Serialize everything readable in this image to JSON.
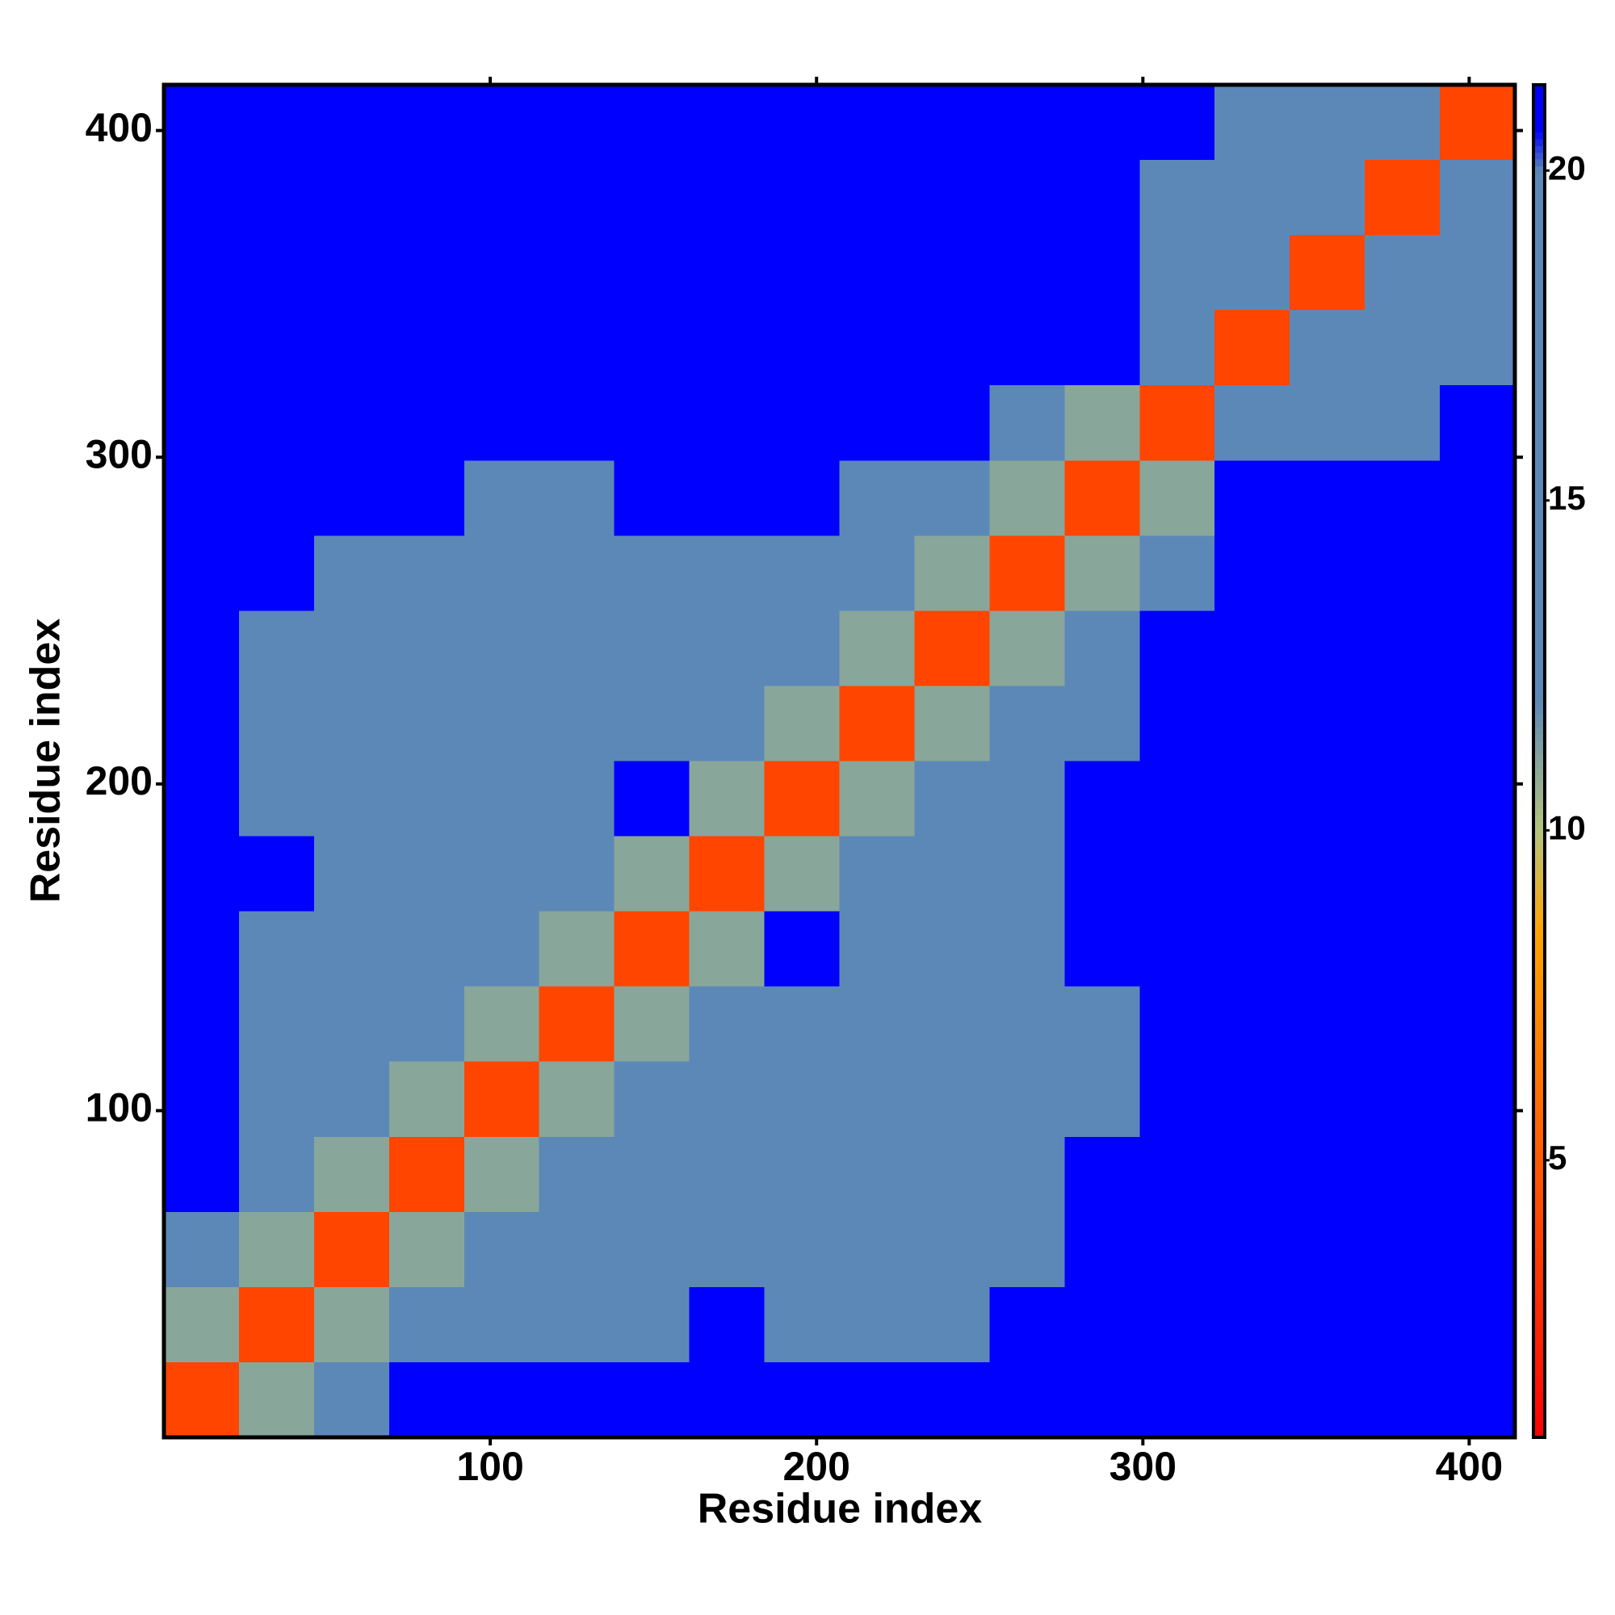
{
  "chart_data": {
    "type": "heatmap",
    "xlabel": "Residue index",
    "ylabel": "Residue index",
    "x": [
      11.5,
      34.5,
      57.5,
      80.5,
      103.5,
      126.5,
      149.5,
      172.5,
      195.5,
      218.5,
      241.5,
      264.5,
      287.5,
      310.5,
      333.5,
      356.5,
      379.5,
      402.5
    ],
    "y": [
      11.5,
      34.5,
      57.5,
      80.5,
      103.5,
      126.5,
      149.5,
      172.5,
      195.5,
      218.5,
      241.5,
      264.5,
      287.5,
      310.5,
      333.5,
      356.5,
      379.5,
      402.5
    ],
    "values": [
      [
        4,
        11,
        15,
        21,
        21,
        21,
        21,
        21,
        21,
        21,
        21,
        21,
        21,
        21,
        21,
        21,
        21,
        21
      ],
      [
        11,
        4,
        11,
        15,
        15,
        15,
        15,
        21,
        15,
        15,
        15,
        21,
        21,
        21,
        21,
        21,
        21,
        21
      ],
      [
        15,
        11,
        4,
        11,
        12,
        15,
        15,
        15,
        15,
        15,
        15,
        15,
        21,
        21,
        21,
        21,
        21,
        21
      ],
      [
        21,
        15,
        11,
        4,
        11,
        12,
        15,
        15,
        15,
        15,
        15,
        15,
        21,
        21,
        21,
        21,
        21,
        21
      ],
      [
        21,
        15,
        12,
        11,
        4,
        11,
        12,
        15,
        15,
        15,
        15,
        15,
        15,
        21,
        21,
        21,
        21,
        21
      ],
      [
        21,
        15,
        15,
        12,
        11,
        4,
        11,
        15,
        15,
        15,
        12,
        15,
        15,
        21,
        21,
        21,
        21,
        21
      ],
      [
        21,
        15,
        15,
        15,
        12,
        11,
        4,
        11,
        21,
        12,
        15,
        15,
        21,
        21,
        21,
        21,
        21,
        21
      ],
      [
        21,
        21,
        15,
        15,
        15,
        15,
        11,
        4,
        11,
        12,
        15,
        15,
        21,
        21,
        21,
        21,
        21,
        21
      ],
      [
        21,
        15,
        15,
        15,
        15,
        15,
        21,
        11,
        4,
        11,
        15,
        15,
        21,
        21,
        21,
        21,
        21,
        21
      ],
      [
        21,
        15,
        15,
        15,
        15,
        15,
        12,
        12,
        11,
        4,
        11,
        15,
        15,
        21,
        21,
        21,
        21,
        21
      ],
      [
        21,
        15,
        15,
        15,
        15,
        12,
        15,
        15,
        15,
        11,
        4,
        11,
        12,
        21,
        21,
        21,
        21,
        21
      ],
      [
        21,
        21,
        15,
        15,
        15,
        15,
        15,
        15,
        15,
        15,
        11,
        4,
        11,
        14,
        21,
        21,
        21,
        21
      ],
      [
        21,
        21,
        21,
        21,
        15,
        15,
        21,
        21,
        21,
        15,
        12,
        11,
        4,
        11,
        21,
        21,
        21,
        21
      ],
      [
        21,
        21,
        21,
        21,
        21,
        21,
        21,
        21,
        21,
        21,
        21,
        14,
        11,
        4,
        13,
        15,
        15,
        21
      ],
      [
        21,
        21,
        21,
        21,
        21,
        21,
        21,
        21,
        21,
        21,
        21,
        21,
        21,
        13,
        4,
        13,
        15,
        15
      ],
      [
        21,
        21,
        21,
        21,
        21,
        21,
        21,
        21,
        21,
        21,
        21,
        21,
        21,
        15,
        13,
        4,
        13,
        15
      ],
      [
        21,
        21,
        21,
        21,
        21,
        21,
        21,
        21,
        21,
        21,
        21,
        21,
        21,
        15,
        15,
        13,
        4,
        13
      ],
      [
        21,
        21,
        21,
        21,
        21,
        21,
        21,
        21,
        21,
        21,
        21,
        21,
        21,
        21,
        15,
        15,
        13,
        4
      ]
    ],
    "xlim": [
      0,
      414
    ],
    "ylim": [
      0,
      414
    ],
    "xticks": [
      100,
      200,
      300,
      400
    ],
    "yticks": [
      100,
      200,
      300,
      400
    ],
    "zlim": [
      0.8,
      21.3
    ],
    "zticks": [
      5,
      10,
      15,
      20
    ],
    "colorscale": [
      [
        0.8,
        "#ff0000"
      ],
      [
        5,
        "#ff5a00"
      ],
      [
        8.5,
        "#ffa500"
      ],
      [
        10,
        "#b5c47c"
      ],
      [
        12,
        "#5c88b8"
      ],
      [
        20,
        "#5c88b8"
      ],
      [
        20.6,
        "#0000ff"
      ]
    ]
  }
}
